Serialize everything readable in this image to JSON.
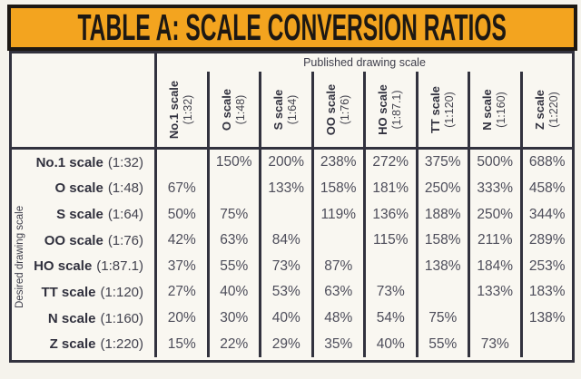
{
  "title": "TABLE A: SCALE CONVERSION RATIOS",
  "published_axis_label": "Published drawing scale",
  "desired_axis_label": "Desired drawing scale",
  "scales": [
    {
      "name": "No.1 scale",
      "ratio": "(1:32)"
    },
    {
      "name": "O scale",
      "ratio": "(1:48)"
    },
    {
      "name": "S scale",
      "ratio": "(1:64)"
    },
    {
      "name": "OO scale",
      "ratio": "(1:76)"
    },
    {
      "name": "HO scale",
      "ratio": "(1:87.1)"
    },
    {
      "name": "TT scale",
      "ratio": "(1:120)"
    },
    {
      "name": "N scale",
      "ratio": "(1:160)"
    },
    {
      "name": "Z scale",
      "ratio": "(1:220)"
    }
  ],
  "matrix": [
    [
      "",
      "150%",
      "200%",
      "238%",
      "272%",
      "375%",
      "500%",
      "688%"
    ],
    [
      "67%",
      "",
      "133%",
      "158%",
      "181%",
      "250%",
      "333%",
      "458%"
    ],
    [
      "50%",
      "75%",
      "",
      "119%",
      "136%",
      "188%",
      "250%",
      "344%"
    ],
    [
      "42%",
      "63%",
      "84%",
      "",
      "115%",
      "158%",
      "211%",
      "289%"
    ],
    [
      "37%",
      "55%",
      "73%",
      "87%",
      "",
      "138%",
      "184%",
      "253%"
    ],
    [
      "27%",
      "40%",
      "53%",
      "63%",
      "73%",
      "",
      "133%",
      "183%"
    ],
    [
      "20%",
      "30%",
      "40%",
      "48%",
      "54%",
      "75%",
      "",
      "138%"
    ],
    [
      "15%",
      "22%",
      "29%",
      "35%",
      "40%",
      "55%",
      "73%",
      ""
    ]
  ],
  "colors": {
    "accent_orange": "#f3a41f",
    "title_ink": "#1d1813",
    "grid_line": "#32323e",
    "text_bold": "#31313e",
    "text_value": "#4d4d5a",
    "paper": "#f5f3ec"
  }
}
